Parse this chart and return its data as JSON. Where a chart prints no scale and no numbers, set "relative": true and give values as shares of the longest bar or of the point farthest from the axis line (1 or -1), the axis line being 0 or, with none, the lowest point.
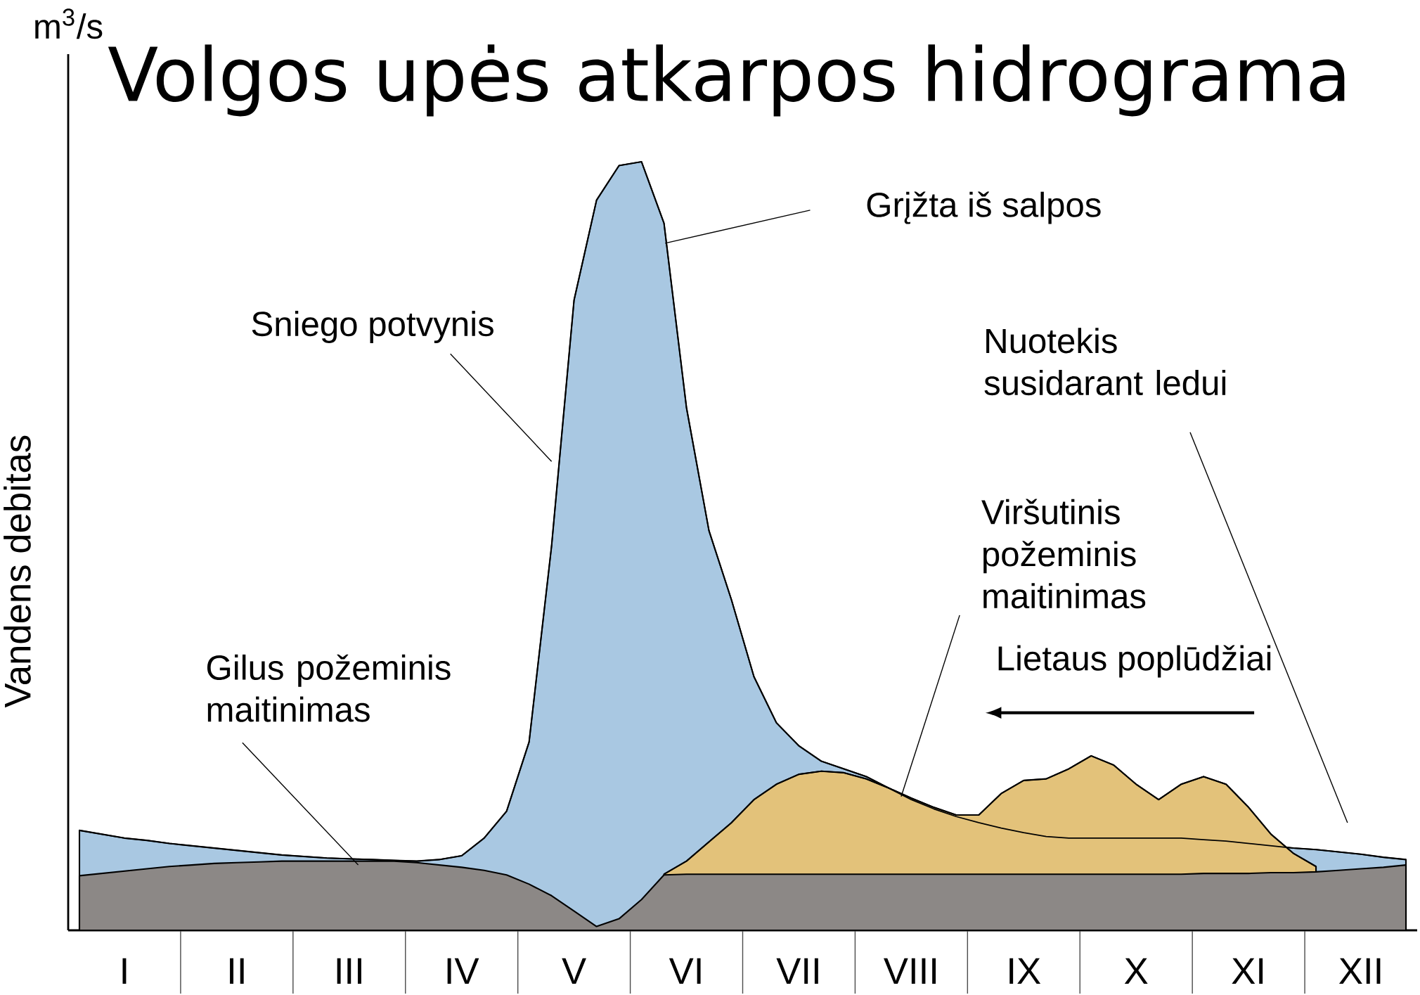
{
  "chart_data": {
    "type": "area",
    "title": "Volgos upės atkarpos hidrograma",
    "ylabel": "Vandens debitas",
    "relative": true,
    "categories": [
      null,
      null,
      "I",
      null,
      null,
      null,
      null,
      "II",
      null,
      null,
      null,
      null,
      "III",
      null,
      null,
      null,
      null,
      "IV",
      null,
      null,
      null,
      null,
      "V",
      null,
      null,
      null,
      null,
      "VI",
      null,
      null,
      null,
      null,
      "VII",
      null,
      null,
      null,
      null,
      "VIII",
      null,
      null,
      null,
      null,
      "IX",
      null,
      null,
      null,
      null,
      "X",
      null,
      null,
      null,
      null,
      "XI",
      null,
      null,
      null,
      null,
      "XII",
      null,
      null
    ],
    "series": [
      {
        "color": "#a9c8e2",
        "values": [
          0.13,
          0.125,
          0.12,
          0.117,
          0.113,
          0.11,
          0.107,
          0.104,
          0.101,
          0.098,
          0.096,
          0.094,
          0.093,
          0.092,
          0.091,
          0.09,
          0.092,
          0.097,
          0.12,
          0.155,
          0.245,
          0.5,
          0.82,
          0.95,
          0.995,
          1.0,
          0.92,
          0.68,
          0.52,
          0.43,
          0.33,
          0.27,
          0.24,
          0.22,
          0.21,
          0.2,
          0.185,
          0.17,
          0.158,
          0.148,
          0.14,
          0.133,
          0.127,
          0.122,
          0.12,
          0.12,
          0.12,
          0.12,
          0.12,
          0.12,
          0.118,
          0.116,
          0.113,
          0.11,
          0.107,
          0.105,
          0.102,
          0.099,
          0.095,
          0.092
        ]
      },
      {
        "color": "#e3c27a",
        "values": [
          null,
          null,
          null,
          null,
          null,
          null,
          null,
          null,
          null,
          null,
          null,
          null,
          null,
          null,
          null,
          null,
          null,
          null,
          null,
          null,
          null,
          null,
          null,
          null,
          null,
          null,
          0.073,
          0.09,
          0.115,
          0.14,
          0.17,
          0.19,
          0.203,
          0.207,
          0.205,
          0.197,
          0.185,
          0.172,
          0.16,
          0.15,
          0.15,
          0.178,
          0.195,
          0.197,
          0.21,
          0.227,
          0.215,
          0.19,
          0.17,
          0.19,
          0.2,
          0.19,
          0.16,
          0.125,
          0.1,
          0.083,
          null,
          null,
          null,
          null
        ]
      },
      {
        "color": "#8c8886",
        "values": [
          0.071,
          0.074,
          0.077,
          0.08,
          0.083,
          0.085,
          0.087,
          0.088,
          0.089,
          0.09,
          0.09,
          0.09,
          0.09,
          0.09,
          0.09,
          0.088,
          0.085,
          0.082,
          0.078,
          0.072,
          0.06,
          0.045,
          0.025,
          0.005,
          0.015,
          0.04,
          0.072,
          0.073,
          0.073,
          0.073,
          0.073,
          0.073,
          0.073,
          0.073,
          0.073,
          0.073,
          0.073,
          0.073,
          0.073,
          0.073,
          0.073,
          0.073,
          0.073,
          0.073,
          0.073,
          0.073,
          0.073,
          0.073,
          0.073,
          0.073,
          0.074,
          0.074,
          0.074,
          0.075,
          0.075,
          0.076,
          0.078,
          0.08,
          0.082,
          0.085
        ]
      }
    ],
    "annotations": [
      "m$^{3}$/s",
      "Grįžta iš salpos",
      "Sniego potvynis",
      "Nuotekis susidarant ledui",
      "Viršutinis požeminis maitinimas",
      "Lietaus poplūdžiai",
      "Gilus požeminis maitinimas"
    ]
  }
}
